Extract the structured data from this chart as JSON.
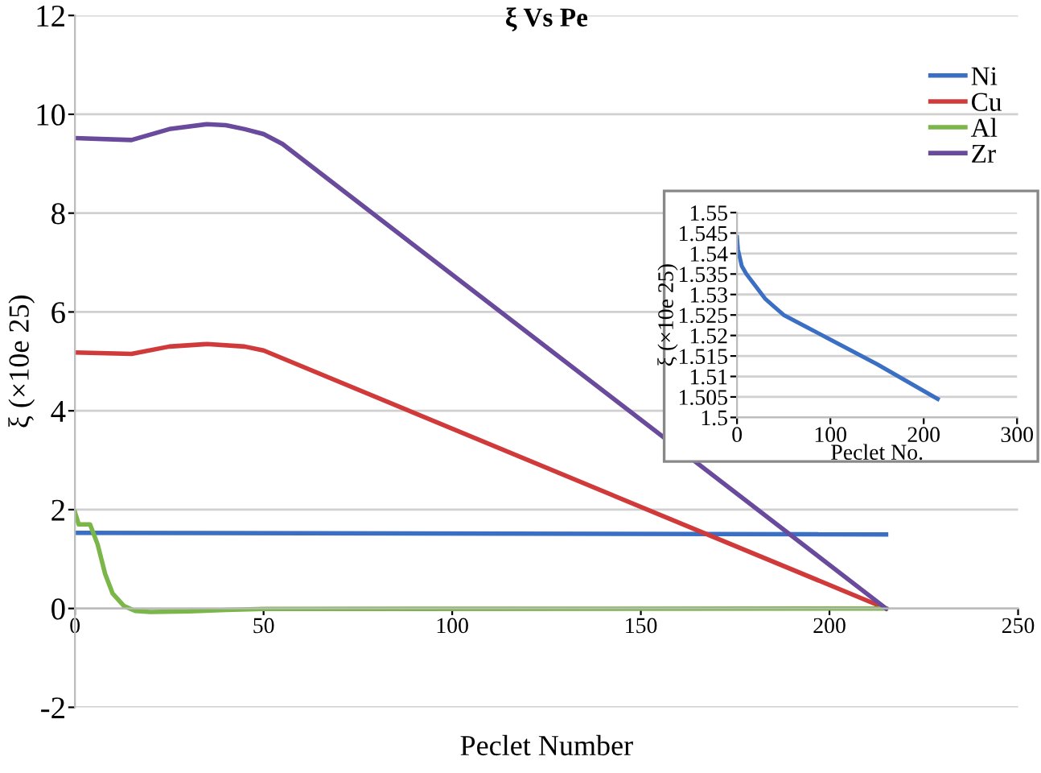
{
  "chart_data": [
    {
      "type": "line",
      "title": "ξ Vs Pe",
      "xlabel": "Peclet Number",
      "ylabel": "ξ (×10e 25)",
      "xlim": [
        0,
        250
      ],
      "xticks": [
        0,
        50,
        100,
        150,
        200,
        250
      ],
      "ylim": [
        -2,
        12
      ],
      "yticks": [
        -2,
        0,
        2,
        4,
        6,
        8,
        10,
        12
      ],
      "grid": "y",
      "legend": "top right",
      "marker": "none",
      "line_style": "solid",
      "series": [
        {
          "name": "Ni",
          "color": "#3a6fc4",
          "x": [
            0,
            215
          ],
          "values": [
            1.53,
            1.5
          ]
        },
        {
          "name": "Cu",
          "color": "#d03a3a",
          "x": [
            0,
            15,
            25,
            35,
            45,
            50,
            215
          ],
          "values": [
            5.18,
            5.15,
            5.3,
            5.35,
            5.3,
            5.22,
            0
          ]
        },
        {
          "name": "Al",
          "color": "#7ab648",
          "x": [
            0,
            1,
            4,
            6,
            8,
            10,
            13,
            16,
            20,
            30,
            40,
            50,
            215
          ],
          "values": [
            1.95,
            1.7,
            1.7,
            1.3,
            0.7,
            0.3,
            0.05,
            -0.05,
            -0.07,
            -0.06,
            -0.03,
            -0.01,
            0
          ]
        },
        {
          "name": "Zr",
          "color": "#6a4a9c",
          "x": [
            0,
            15,
            25,
            35,
            40,
            45,
            50,
            55,
            215
          ],
          "values": [
            9.52,
            9.48,
            9.7,
            9.8,
            9.78,
            9.7,
            9.6,
            9.4,
            0
          ]
        }
      ]
    },
    {
      "type": "line",
      "xlabel": "Peclet No.",
      "ylabel": "ξ (×10e 25)",
      "xlim": [
        0,
        300
      ],
      "xticks": [
        0,
        100,
        200,
        300
      ],
      "ylim": [
        1.5,
        1.55
      ],
      "yticks": [
        1.5,
        1.505,
        1.51,
        1.515,
        1.52,
        1.525,
        1.53,
        1.535,
        1.54,
        1.545,
        1.55
      ],
      "grid": "y",
      "marker": "none",
      "line_style": "solid",
      "series": [
        {
          "color": "#3a6fc4",
          "x": [
            0,
            1,
            5,
            10,
            20,
            30,
            40,
            50,
            75,
            100,
            150,
            215
          ],
          "values": [
            1.544,
            1.541,
            1.537,
            1.535,
            1.532,
            1.529,
            1.527,
            1.525,
            1.522,
            1.519,
            1.513,
            1.5045
          ]
        }
      ]
    }
  ]
}
